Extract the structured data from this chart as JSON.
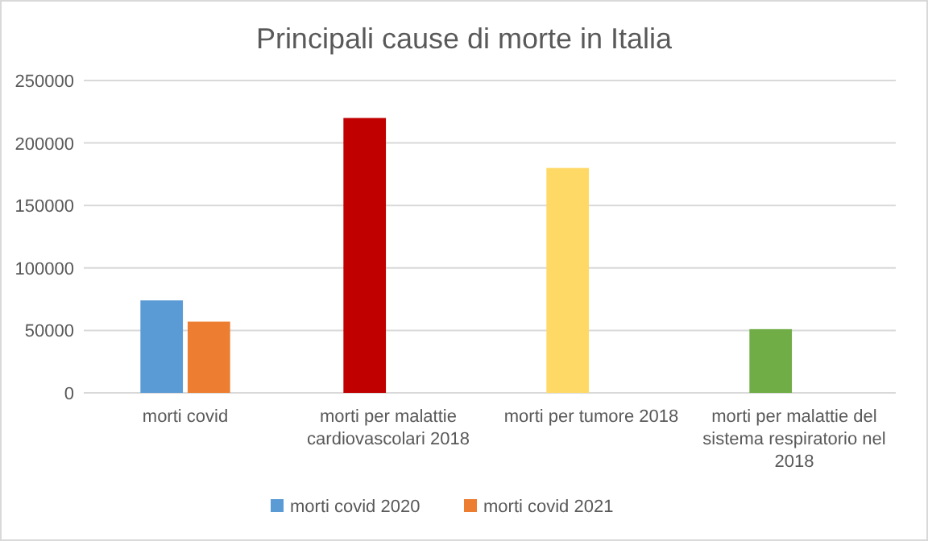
{
  "chart_data": {
    "type": "bar",
    "title": "Principali cause di morte in  Italia",
    "categories": [
      "morti covid",
      "morti per malattie cardiovascolari 2018",
      "morti per tumore 2018",
      "morti per malattie del sistema respiratorio nel 2018"
    ],
    "series": [
      {
        "name": "morti covid 2020",
        "color": "#5b9bd5",
        "colors": [
          "#5b9bd5",
          "#c00000",
          "#ffd966",
          "#70ad47"
        ],
        "values": [
          74000,
          220000,
          180000,
          51000
        ]
      },
      {
        "name": "morti covid 2021",
        "color": "#ed7d31",
        "values": [
          57000,
          null,
          null,
          null
        ]
      }
    ],
    "ylim": [
      0,
      250000
    ],
    "yticks": [
      0,
      50000,
      100000,
      150000,
      200000,
      250000
    ],
    "grid": "y",
    "legend": "bottom"
  }
}
